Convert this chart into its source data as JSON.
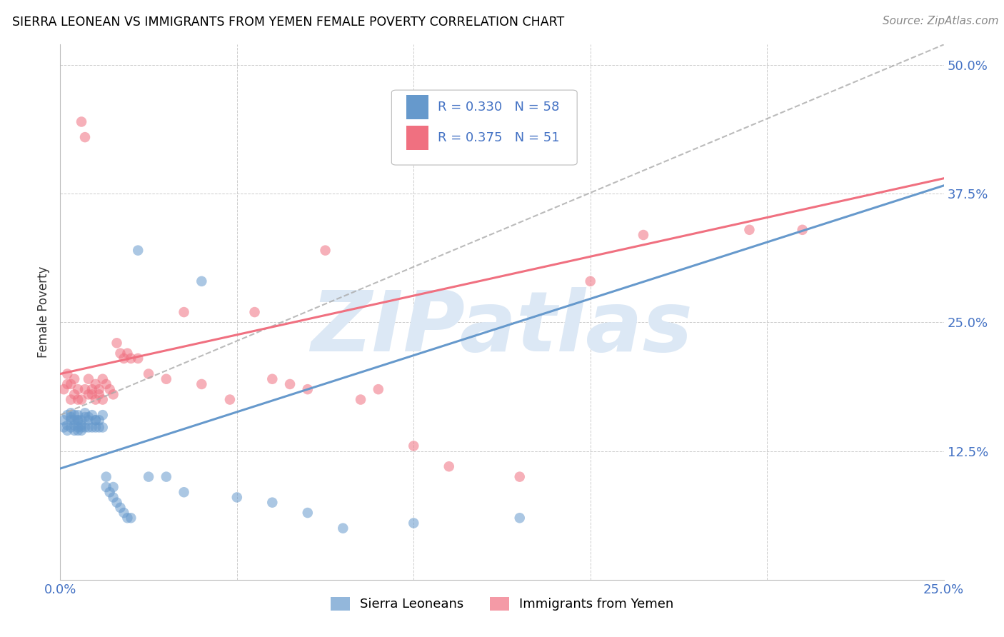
{
  "title": "SIERRA LEONEAN VS IMMIGRANTS FROM YEMEN FEMALE POVERTY CORRELATION CHART",
  "source": "Source: ZipAtlas.com",
  "ylabel": "Female Poverty",
  "xlim": [
    0.0,
    0.25
  ],
  "ylim": [
    0.0,
    0.52
  ],
  "x_ticks": [
    0.0,
    0.05,
    0.1,
    0.15,
    0.2,
    0.25
  ],
  "x_tick_labels": [
    "0.0%",
    "",
    "",
    "",
    "",
    "25.0%"
  ],
  "y_ticks": [
    0.0,
    0.125,
    0.25,
    0.375,
    0.5
  ],
  "y_tick_labels": [
    "",
    "12.5%",
    "25.0%",
    "37.5%",
    "50.0%"
  ],
  "sl_color": "#6699cc",
  "ye_color": "#f07080",
  "dash_color": "#aabbcc",
  "tick_color": "#4472c4",
  "grid_color": "#cccccc",
  "watermark_color": "#dce8f5",
  "background_color": "#ffffff",
  "sl_R": 0.33,
  "sl_N": 58,
  "ye_R": 0.375,
  "ye_N": 51,
  "sl_x": [
    0.001,
    0.001,
    0.002,
    0.002,
    0.002,
    0.003,
    0.003,
    0.003,
    0.003,
    0.004,
    0.004,
    0.004,
    0.004,
    0.005,
    0.005,
    0.005,
    0.005,
    0.005,
    0.006,
    0.006,
    0.006,
    0.006,
    0.007,
    0.007,
    0.007,
    0.008,
    0.008,
    0.008,
    0.009,
    0.009,
    0.01,
    0.01,
    0.01,
    0.011,
    0.011,
    0.012,
    0.012,
    0.013,
    0.013,
    0.014,
    0.015,
    0.015,
    0.016,
    0.017,
    0.018,
    0.019,
    0.02,
    0.022,
    0.025,
    0.03,
    0.035,
    0.04,
    0.05,
    0.06,
    0.07,
    0.08,
    0.1,
    0.13
  ],
  "sl_y": [
    0.155,
    0.148,
    0.15,
    0.16,
    0.145,
    0.158,
    0.162,
    0.148,
    0.155,
    0.16,
    0.15,
    0.145,
    0.155,
    0.155,
    0.148,
    0.16,
    0.145,
    0.155,
    0.15,
    0.148,
    0.155,
    0.145,
    0.162,
    0.148,
    0.158,
    0.158,
    0.148,
    0.155,
    0.16,
    0.148,
    0.155,
    0.148,
    0.155,
    0.148,
    0.155,
    0.148,
    0.16,
    0.1,
    0.09,
    0.085,
    0.08,
    0.09,
    0.075,
    0.07,
    0.065,
    0.06,
    0.06,
    0.32,
    0.1,
    0.1,
    0.085,
    0.29,
    0.08,
    0.075,
    0.065,
    0.05,
    0.055,
    0.06
  ],
  "ye_x": [
    0.001,
    0.002,
    0.002,
    0.003,
    0.003,
    0.004,
    0.004,
    0.005,
    0.005,
    0.006,
    0.006,
    0.007,
    0.007,
    0.008,
    0.008,
    0.009,
    0.009,
    0.01,
    0.01,
    0.011,
    0.011,
    0.012,
    0.012,
    0.013,
    0.014,
    0.015,
    0.016,
    0.017,
    0.018,
    0.019,
    0.02,
    0.022,
    0.025,
    0.03,
    0.035,
    0.04,
    0.048,
    0.055,
    0.06,
    0.065,
    0.07,
    0.075,
    0.085,
    0.09,
    0.1,
    0.11,
    0.13,
    0.15,
    0.165,
    0.195,
    0.21
  ],
  "ye_y": [
    0.185,
    0.19,
    0.2,
    0.175,
    0.19,
    0.18,
    0.195,
    0.175,
    0.185,
    0.175,
    0.445,
    0.185,
    0.43,
    0.18,
    0.195,
    0.18,
    0.185,
    0.175,
    0.19,
    0.185,
    0.18,
    0.195,
    0.175,
    0.19,
    0.185,
    0.18,
    0.23,
    0.22,
    0.215,
    0.22,
    0.215,
    0.215,
    0.2,
    0.195,
    0.26,
    0.19,
    0.175,
    0.26,
    0.195,
    0.19,
    0.185,
    0.32,
    0.175,
    0.185,
    0.13,
    0.11,
    0.1,
    0.29,
    0.335,
    0.34,
    0.34
  ],
  "sl_line_b0": 0.108,
  "sl_line_b1": 1.1,
  "ye_line_b0": 0.2,
  "ye_line_b1": 0.76,
  "dash_b0": 0.16,
  "dash_b1": 1.44
}
